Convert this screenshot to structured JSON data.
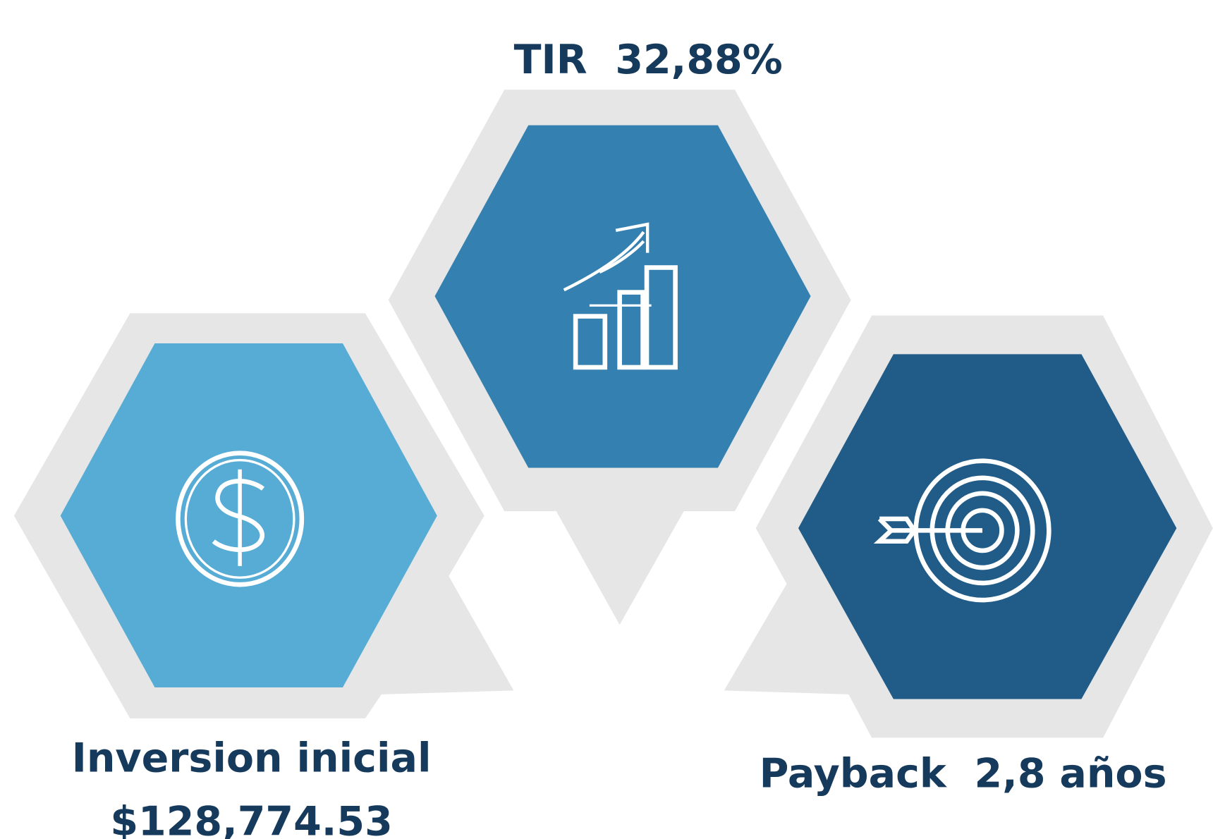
{
  "metrics": [
    {
      "label": "TIR  32,88%"
    },
    {
      "label": "Inversion inicial",
      "value": "$128,774.53"
    },
    {
      "label": "Payback  2,8 años"
    }
  ]
}
